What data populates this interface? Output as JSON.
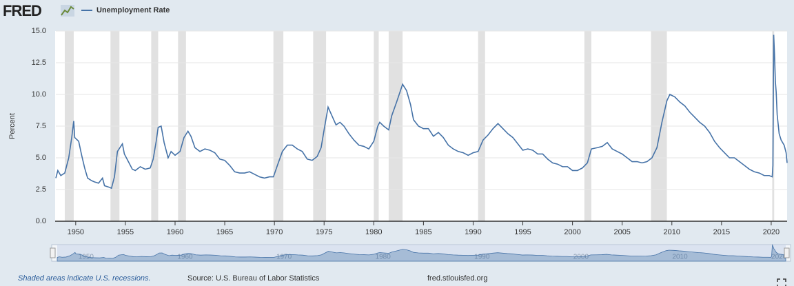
{
  "chart_data": {
    "type": "line",
    "logo": "FRED",
    "y_label": "Percent",
    "series": [
      {
        "name": "Unemployment Rate",
        "color": "#4572a7",
        "x": [
          1948.0,
          1948.2,
          1948.5,
          1948.9,
          1949.3,
          1949.6,
          1949.8,
          1949.9,
          1950.3,
          1950.6,
          1950.9,
          1951.2,
          1951.6,
          1951.9,
          1952.3,
          1952.7,
          1952.9,
          1953.3,
          1953.6,
          1953.9,
          1954.2,
          1954.7,
          1954.9,
          1955.3,
          1955.7,
          1956.0,
          1956.5,
          1957.0,
          1957.5,
          1957.8,
          1958.1,
          1958.3,
          1958.6,
          1958.9,
          1959.3,
          1959.6,
          1960.0,
          1960.5,
          1960.9,
          1961.3,
          1961.6,
          1962.0,
          1962.5,
          1963.0,
          1963.5,
          1964.0,
          1964.5,
          1965.0,
          1965.5,
          1966.0,
          1966.5,
          1967.0,
          1967.5,
          1968.0,
          1968.5,
          1969.0,
          1969.5,
          1969.9,
          1970.3,
          1970.8,
          1971.3,
          1971.8,
          1972.3,
          1972.8,
          1973.3,
          1973.8,
          1974.3,
          1974.7,
          1975.0,
          1975.4,
          1975.8,
          1976.2,
          1976.6,
          1977.0,
          1977.5,
          1978.0,
          1978.5,
          1979.0,
          1979.5,
          1980.0,
          1980.4,
          1980.6,
          1981.0,
          1981.5,
          1981.8,
          1982.3,
          1982.9,
          1983.3,
          1983.7,
          1984.0,
          1984.5,
          1985.0,
          1985.5,
          1986.0,
          1986.5,
          1987.0,
          1987.5,
          1988.0,
          1988.5,
          1989.0,
          1989.5,
          1990.0,
          1990.5,
          1991.0,
          1991.5,
          1992.0,
          1992.5,
          1993.0,
          1993.5,
          1994.0,
          1994.5,
          1995.0,
          1995.5,
          1996.0,
          1996.5,
          1997.0,
          1997.5,
          1998.0,
          1998.5,
          1999.0,
          1999.5,
          2000.0,
          2000.5,
          2001.0,
          2001.5,
          2001.9,
          2002.5,
          2003.0,
          2003.5,
          2004.0,
          2004.5,
          2005.0,
          2005.5,
          2006.0,
          2006.5,
          2007.0,
          2007.5,
          2008.0,
          2008.5,
          2009.0,
          2009.5,
          2009.8,
          2010.3,
          2010.8,
          2011.3,
          2011.8,
          2012.3,
          2012.8,
          2013.3,
          2013.8,
          2014.3,
          2014.8,
          2015.3,
          2015.8,
          2016.3,
          2016.8,
          2017.3,
          2017.8,
          2018.3,
          2018.8,
          2019.3,
          2019.8,
          2020.1,
          2020.17,
          2020.25,
          2020.33,
          2020.42,
          2020.5,
          2020.6,
          2020.8,
          2021.0,
          2021.3,
          2021.5,
          2021.6
        ],
        "values": [
          3.4,
          4.0,
          3.6,
          3.8,
          5.0,
          6.6,
          7.9,
          6.6,
          6.3,
          5.2,
          4.2,
          3.4,
          3.2,
          3.1,
          3.0,
          3.4,
          2.8,
          2.7,
          2.6,
          3.5,
          5.5,
          6.1,
          5.3,
          4.7,
          4.1,
          4.0,
          4.3,
          4.1,
          4.2,
          4.9,
          6.3,
          7.4,
          7.5,
          6.2,
          5.0,
          5.5,
          5.2,
          5.5,
          6.6,
          7.1,
          6.7,
          5.8,
          5.5,
          5.7,
          5.6,
          5.4,
          4.9,
          4.8,
          4.4,
          3.9,
          3.8,
          3.8,
          3.9,
          3.7,
          3.5,
          3.4,
          3.5,
          3.5,
          4.4,
          5.5,
          6.0,
          6.0,
          5.7,
          5.5,
          4.9,
          4.8,
          5.1,
          5.8,
          7.2,
          9.0,
          8.3,
          7.6,
          7.8,
          7.5,
          6.9,
          6.4,
          6.0,
          5.9,
          5.7,
          6.3,
          7.5,
          7.8,
          7.5,
          7.2,
          8.3,
          9.4,
          10.8,
          10.3,
          9.2,
          8.0,
          7.5,
          7.3,
          7.3,
          6.7,
          7.0,
          6.6,
          6.0,
          5.7,
          5.5,
          5.4,
          5.2,
          5.4,
          5.5,
          6.4,
          6.8,
          7.3,
          7.7,
          7.3,
          6.9,
          6.6,
          6.1,
          5.6,
          5.7,
          5.6,
          5.3,
          5.3,
          4.9,
          4.6,
          4.5,
          4.3,
          4.3,
          4.0,
          4.0,
          4.2,
          4.6,
          5.7,
          5.8,
          5.9,
          6.2,
          5.7,
          5.5,
          5.3,
          5.0,
          4.7,
          4.7,
          4.6,
          4.7,
          5.0,
          5.8,
          7.8,
          9.5,
          10.0,
          9.8,
          9.4,
          9.1,
          8.6,
          8.2,
          7.8,
          7.5,
          7.0,
          6.3,
          5.8,
          5.4,
          5.0,
          5.0,
          4.7,
          4.4,
          4.1,
          3.9,
          3.8,
          3.6,
          3.6,
          3.5,
          4.4,
          14.7,
          13.2,
          11.0,
          10.2,
          8.4,
          6.9,
          6.4,
          6.0,
          5.4,
          4.6
        ]
      }
    ],
    "recessions": [
      [
        1948.9,
        1949.8
      ],
      [
        1953.5,
        1954.4
      ],
      [
        1957.6,
        1958.3
      ],
      [
        1960.3,
        1961.1
      ],
      [
        1969.9,
        1970.9
      ],
      [
        1973.9,
        1975.2
      ],
      [
        1980.0,
        1980.5
      ],
      [
        1981.5,
        1982.9
      ],
      [
        1990.5,
        1991.2
      ],
      [
        2001.2,
        2001.9
      ],
      [
        2007.9,
        2009.5
      ],
      [
        2020.1,
        2020.3
      ]
    ],
    "recession_color": "#e1e1e1",
    "xlim": [
      1948,
      2021.6
    ],
    "xticks": [
      1950,
      1955,
      1960,
      1965,
      1970,
      1975,
      1980,
      1985,
      1990,
      1995,
      2000,
      2005,
      2010,
      2015,
      2020
    ],
    "ylim": [
      0,
      15
    ],
    "yticks": [
      {
        "value": 0,
        "label": "0.0"
      },
      2.5,
      {
        "value": 5,
        "label": "5.0"
      },
      7.5,
      {
        "value": 10,
        "label": "10.0"
      },
      12.5,
      {
        "value": 15,
        "label": "15.0"
      }
    ],
    "grid": true,
    "navigator_ticks": [
      1950,
      1960,
      1970,
      1980,
      1990,
      2000,
      2010,
      2020
    ],
    "footnote": "Shaded areas indicate U.S. recessions.",
    "source": "Source: U.S. Bureau of Labor Statistics",
    "site": "fred.stlouisfed.org"
  }
}
